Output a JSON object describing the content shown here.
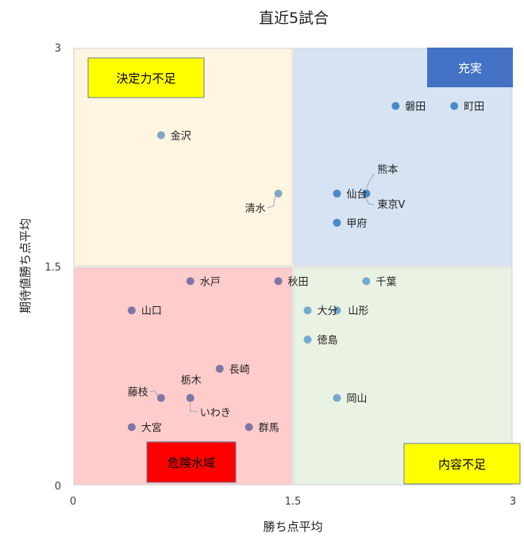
{
  "chart_data": {
    "type": "scatter",
    "title": "直近5試合",
    "xlabel": "勝ち点平均",
    "ylabel": "期待値勝ち点平均",
    "xlim": [
      0,
      3
    ],
    "ylim": [
      0,
      3
    ],
    "xticks": [
      "0",
      "1.5",
      "3"
    ],
    "yticks": [
      "0",
      "1.5",
      "3"
    ],
    "grid": false,
    "quadrants": [
      {
        "name": "決定力不足",
        "color": "#fff5e1",
        "x": [
          0,
          1.5
        ],
        "y": [
          1.5,
          3
        ]
      },
      {
        "name": "充実",
        "color": "#d6e3f3",
        "x": [
          1.5,
          3
        ],
        "y": [
          1.5,
          3
        ]
      },
      {
        "name": "危険水域",
        "color": "#ffcccc",
        "x": [
          0,
          1.5
        ],
        "y": [
          0,
          1.5
        ]
      },
      {
        "name": "内容不足",
        "color": "#eaf2e4",
        "x": [
          1.5,
          3
        ],
        "y": [
          0,
          1.5
        ]
      }
    ],
    "quadrant_labels": [
      {
        "text": "決定力不足",
        "bg": "#ffff00",
        "fg": "#000000"
      },
      {
        "text": "充実",
        "bg": "#4472c4",
        "fg": "#ffffff"
      },
      {
        "text": "危険水域",
        "bg": "#ff0000",
        "fg": "#000000"
      },
      {
        "text": "内容不足",
        "bg": "#ffff00",
        "fg": "#000000"
      }
    ],
    "points": [
      {
        "name": "磐田",
        "x": 2.2,
        "y": 2.6,
        "color": "#4a8ac4"
      },
      {
        "name": "町田",
        "x": 2.6,
        "y": 2.6,
        "color": "#4a8ac4"
      },
      {
        "name": "金沢",
        "x": 0.6,
        "y": 2.4,
        "color": "#82a7c0"
      },
      {
        "name": "熊本",
        "x": 2.0,
        "y": 2.0,
        "color": "#4a8ac4"
      },
      {
        "name": "仙台",
        "x": 1.8,
        "y": 2.0,
        "color": "#4a8ac4"
      },
      {
        "name": "東京V",
        "x": 2.0,
        "y": 2.0,
        "color": "#4a8ac4"
      },
      {
        "name": "清水",
        "x": 1.4,
        "y": 2.0,
        "color": "#82a7c0"
      },
      {
        "name": "甲府",
        "x": 1.8,
        "y": 1.8,
        "color": "#4a8ac4"
      },
      {
        "name": "水戸",
        "x": 0.8,
        "y": 1.4,
        "color": "#7e77a6"
      },
      {
        "name": "秋田",
        "x": 1.4,
        "y": 1.4,
        "color": "#7e77a6"
      },
      {
        "name": "千葉",
        "x": 2.0,
        "y": 1.4,
        "color": "#75aacf"
      },
      {
        "name": "山口",
        "x": 0.4,
        "y": 1.2,
        "color": "#7e77a6"
      },
      {
        "name": "大分",
        "x": 1.6,
        "y": 1.2,
        "color": "#75aacf"
      },
      {
        "name": "山形",
        "x": 1.8,
        "y": 1.2,
        "color": "#75aacf"
      },
      {
        "name": "徳島",
        "x": 1.6,
        "y": 1.0,
        "color": "#75aacf"
      },
      {
        "name": "長崎",
        "x": 1.0,
        "y": 0.8,
        "color": "#7e77a6"
      },
      {
        "name": "栃木",
        "x": 0.8,
        "y": 0.6,
        "color": "#7e77a6"
      },
      {
        "name": "藤枝",
        "x": 0.6,
        "y": 0.6,
        "color": "#7e77a6"
      },
      {
        "name": "いわき",
        "x": 0.8,
        "y": 0.6,
        "color": "#7e77a6"
      },
      {
        "name": "岡山",
        "x": 1.8,
        "y": 0.6,
        "color": "#75aacf"
      },
      {
        "name": "大宮",
        "x": 0.4,
        "y": 0.4,
        "color": "#7e77a6"
      },
      {
        "name": "群馬",
        "x": 1.2,
        "y": 0.4,
        "color": "#7e77a6"
      }
    ]
  }
}
